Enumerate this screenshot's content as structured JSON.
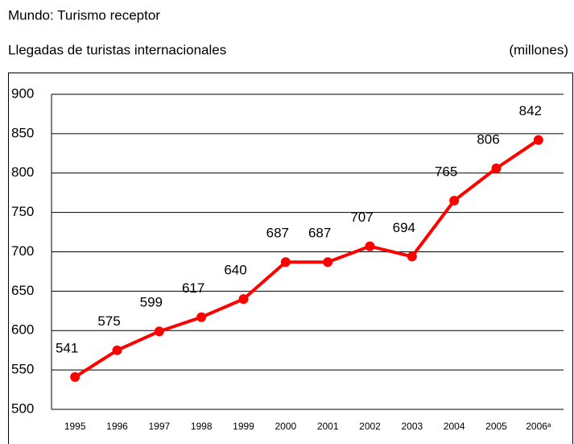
{
  "chart_data": {
    "type": "line",
    "title": "Mundo: Turismo receptor",
    "subtitle": "Llegadas de turistas internacionales",
    "unit_label": "(millones)",
    "categories": [
      "1995",
      "1996",
      "1997",
      "1998",
      "1999",
      "2000",
      "2001",
      "2002",
      "2003",
      "2004",
      "2005",
      "2006ᵃ"
    ],
    "series": [
      {
        "name": "Llegadas",
        "color": "#ff0000",
        "values": [
          541,
          575,
          599,
          617,
          640,
          687,
          687,
          707,
          694,
          765,
          806,
          842
        ]
      }
    ],
    "ylim": [
      500,
      900
    ],
    "yticks": [
      500,
      550,
      600,
      650,
      700,
      750,
      800,
      850,
      900
    ],
    "grid": true
  }
}
